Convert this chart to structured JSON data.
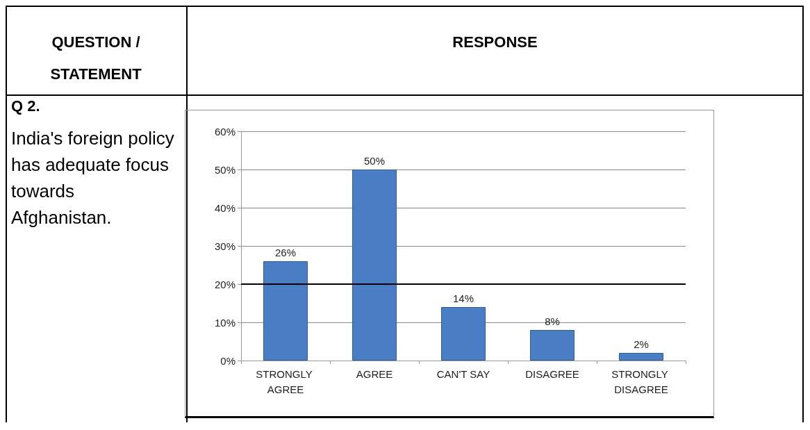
{
  "chart_data": {
    "type": "bar",
    "annotations": [
      "QUESTION / STATEMENT",
      "RESPONSE",
      "Q 2.",
      "India's foreign policy has adequate focus towards Afghanistan."
    ],
    "categories": [
      "STRONGLY AGREE",
      "AGREE",
      "CAN'T SAY",
      "DISAGREE",
      "STRONGLY DISAGREE"
    ],
    "values": [
      26,
      50,
      14,
      8,
      2
    ],
    "value_labels": [
      "26%",
      "50%",
      "14%",
      "8%",
      "2%"
    ],
    "color": "#4a7ec4",
    "ylim": [
      0,
      60
    ],
    "yticks": [
      {
        "value": 0,
        "label": "0%"
      },
      {
        "value": 10,
        "label": "10%"
      },
      {
        "value": 20,
        "label": "20%"
      },
      {
        "value": 30,
        "label": "30%"
      },
      {
        "value": 40,
        "label": "40%"
      },
      {
        "value": 50,
        "label": "50%"
      },
      {
        "value": 60,
        "label": "60%"
      }
    ],
    "ref_lines": [
      {
        "axis": "y",
        "value": 20,
        "color": "#000000"
      }
    ],
    "grid": "y"
  }
}
